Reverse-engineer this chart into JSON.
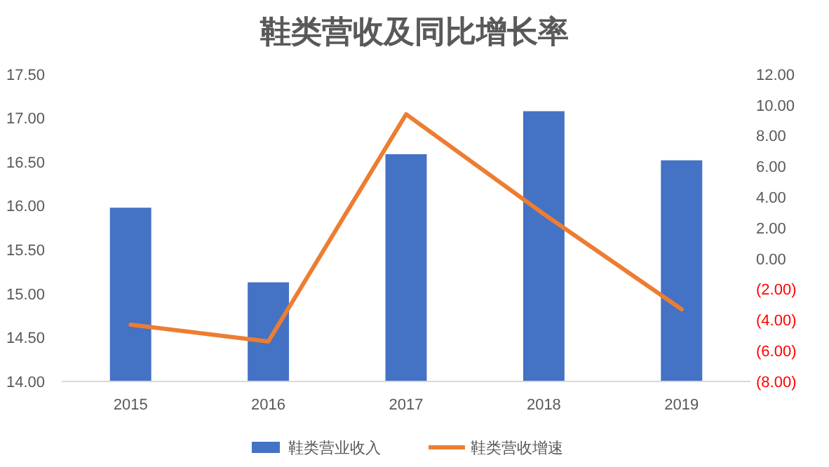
{
  "chart_data": {
    "type": "bar",
    "title": "鞋类营收及同比增长率",
    "categories": [
      "2015",
      "2016",
      "2017",
      "2018",
      "2019"
    ],
    "series": [
      {
        "name": "鞋类营业收入",
        "color": "#4472c4",
        "values": [
          15.98,
          15.13,
          16.59,
          17.08,
          16.52
        ]
      },
      {
        "name": "鞋类营收增速",
        "type": "line",
        "axis": "y2",
        "color": "#ed7d31",
        "values": [
          -4.3,
          -5.4,
          9.4,
          2.9,
          -3.3
        ]
      }
    ],
    "ylim": [
      14,
      17.5
    ],
    "yticks": [
      {
        "value": 14,
        "label": "14.00"
      },
      {
        "value": 14.5,
        "label": "14.50"
      },
      {
        "value": 15,
        "label": "15.00"
      },
      {
        "value": 15.5,
        "label": "15.50"
      },
      {
        "value": 16,
        "label": "16.00"
      },
      {
        "value": 16.5,
        "label": "16.50"
      },
      {
        "value": 17,
        "label": "17.00"
      },
      {
        "value": 17.5,
        "label": "17.50"
      }
    ],
    "y2lim": [
      -8,
      12
    ],
    "y2ticks": [
      {
        "value": -8,
        "label": "(8.00)"
      },
      {
        "value": -6,
        "label": "(6.00)"
      },
      {
        "value": -4,
        "label": "(4.00)"
      },
      {
        "value": -2,
        "label": "(2.00)"
      },
      {
        "value": 0,
        "label": "0.00"
      },
      {
        "value": 2,
        "label": "2.00"
      },
      {
        "value": 4,
        "label": "4.00"
      },
      {
        "value": 6,
        "label": "6.00"
      },
      {
        "value": 8,
        "label": "8.00"
      },
      {
        "value": 10,
        "label": "10.00"
      },
      {
        "value": 12,
        "label": "12.00"
      }
    ],
    "legend": "bottom",
    "marker": "none",
    "line_style": "solid"
  }
}
